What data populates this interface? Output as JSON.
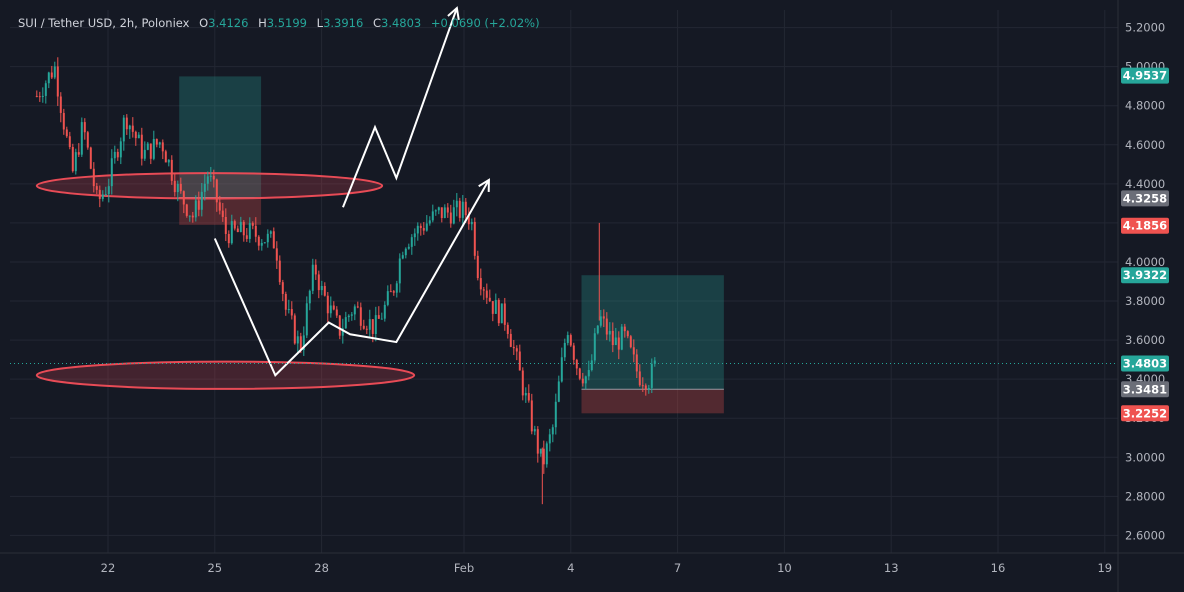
{
  "header": {
    "symbol": "SUI / Tether USD, 2h, Poloniex",
    "open_label": "O",
    "open": "3.4126",
    "high_label": "H",
    "high": "3.5199",
    "low_label": "L",
    "low": "3.3916",
    "close_label": "C",
    "close": "3.4803",
    "change": "+0.0690 (+2.02%)"
  },
  "colors": {
    "background": "#151924",
    "up": "#26a69a",
    "down": "#ef5350",
    "grid": "#232733",
    "axis_text": "#b2b5be",
    "drawing_white": "#ffffff",
    "ellipse": "#e84b56",
    "profit_zone": "rgba(38,166,154,0.28)",
    "loss_zone": "rgba(239,83,80,0.28)"
  },
  "chart_data": {
    "type": "candlestick",
    "y_axis": {
      "range": [
        2.51,
        5.29
      ],
      "ticks": [
        "2.6000",
        "2.8000",
        "3.0000",
        "3.2000",
        "3.4000",
        "3.6000",
        "3.8000",
        "4.0000",
        "4.2000",
        "4.4000",
        "4.6000",
        "4.8000",
        "5.0000",
        "5.2000"
      ]
    },
    "x_axis": {
      "labels": [
        "22",
        "25",
        "28",
        "Feb",
        "4",
        "7",
        "10",
        "13",
        "16",
        "19"
      ]
    },
    "price_path": [
      {
        "x": "20",
        "y": 4.85
      },
      {
        "x": "20.5",
        "y": 5.0
      },
      {
        "x": "21",
        "y": 4.45
      },
      {
        "x": "21.3",
        "y": 4.7
      },
      {
        "x": "21.7",
        "y": 4.3
      },
      {
        "x": "22",
        "y": 4.4
      },
      {
        "x": "22.5",
        "y": 4.75
      },
      {
        "x": "23",
        "y": 4.55
      },
      {
        "x": "23.5",
        "y": 4.62
      },
      {
        "x": "24",
        "y": 4.35
      },
      {
        "x": "24.4",
        "y": 4.23
      },
      {
        "x": "24.8",
        "y": 4.45
      },
      {
        "x": "25",
        "y": 4.35
      },
      {
        "x": "25.3",
        "y": 4.15
      },
      {
        "x": "26",
        "y": 4.15
      },
      {
        "x": "26.7",
        "y": 4.1
      },
      {
        "x": "27",
        "y": 3.75
      },
      {
        "x": "27.4",
        "y": 3.56
      },
      {
        "x": "27.8",
        "y": 3.98
      },
      {
        "x": "28",
        "y": 3.85
      },
      {
        "x": "28.5",
        "y": 3.65
      },
      {
        "x": "28.9",
        "y": 3.77
      },
      {
        "x": "29.5",
        "y": 3.66
      },
      {
        "x": "30",
        "y": 3.85
      },
      {
        "x": "30.3",
        "y": 4.1
      },
      {
        "x": "30.8",
        "y": 4.18
      },
      {
        "x": "31.3",
        "y": 4.25
      },
      {
        "x": "Feb 1",
        "y": 4.26
      },
      {
        "x": "Feb 1.2",
        "y": 4.22
      },
      {
        "x": "Feb 1.4",
        "y": 3.95
      },
      {
        "x": "Feb 1.8",
        "y": 3.78
      },
      {
        "x": "Feb 2.2",
        "y": 3.7
      },
      {
        "x": "Feb 2.6",
        "y": 3.4
      },
      {
        "x": "Feb 3",
        "y": 3.1
      },
      {
        "x": "Feb 3.2",
        "y": 2.96
      },
      {
        "x": "Feb 3.5",
        "y": 3.15
      },
      {
        "x": "Feb 3.9",
        "y": 3.68
      },
      {
        "x": "Feb 4.2",
        "y": 3.45
      },
      {
        "x": "Feb 4.5",
        "y": 3.4
      },
      {
        "x": "Feb 4.8",
        "y": 3.72
      },
      {
        "x": "Feb 5.2",
        "y": 3.58
      },
      {
        "x": "Feb 5.5",
        "y": 3.62
      },
      {
        "x": "Feb 5.9",
        "y": 3.42
      },
      {
        "x": "Feb 6.2",
        "y": 3.4
      },
      {
        "x": "Feb 6.4",
        "y": 3.48
      }
    ],
    "highs_lows": {
      "spike_high": 4.2,
      "crash_low": 2.76
    },
    "position_boxes": [
      {
        "kind": "long",
        "x_start": "24",
        "x_end": "26.3",
        "entry": 4.33,
        "target": 4.95,
        "stop": 4.19
      },
      {
        "kind": "long",
        "x_start": "Feb 4.3",
        "x_end": "Feb 8.3",
        "entry": 3.3481,
        "target": 3.9322,
        "stop": 3.2252
      }
    ],
    "zones": [
      {
        "shape": "ellipse",
        "x_start": "20",
        "x_end": "29.7",
        "y_center": 4.39,
        "y_top": 4.46,
        "y_bottom": 4.33
      },
      {
        "shape": "ellipse",
        "x_start": "20",
        "x_end": "30.6",
        "y_center": 3.42,
        "y_top": 3.49,
        "y_bottom": 3.35
      }
    ],
    "drawings": [
      {
        "type": "polyline",
        "points": [
          {
            "x": "25",
            "y": 4.12
          },
          {
            "x": "26.7",
            "y": 3.42
          },
          {
            "x": "28.2",
            "y": 3.69
          },
          {
            "x": "28.8",
            "y": 3.63
          },
          {
            "x": "30.1",
            "y": 3.59
          },
          {
            "x": "Feb 1.7",
            "y": 4.42
          }
        ],
        "arrow": true
      },
      {
        "type": "polyline",
        "points": [
          {
            "x": "28.6",
            "y": 4.28
          },
          {
            "x": "29.5",
            "y": 4.69
          },
          {
            "x": "30.1",
            "y": 4.43
          },
          {
            "x": "31.8",
            "y": 5.3
          }
        ],
        "arrow": true
      }
    ],
    "price_badges": [
      {
        "value": "4.9537",
        "y": 4.9537,
        "color": "#26a69a"
      },
      {
        "value": "4.3258",
        "y": 4.3258,
        "color": "#6b6e78"
      },
      {
        "value": "4.1856",
        "y": 4.1856,
        "color": "#ef5350"
      },
      {
        "value": "3.9322",
        "y": 3.9322,
        "color": "#26a69a"
      },
      {
        "value": "3.4803",
        "y": 3.4803,
        "color": "#26a69a"
      },
      {
        "value": "3.3481",
        "y": 3.3481,
        "color": "#6b6e78"
      },
      {
        "value": "3.2252",
        "y": 3.2252,
        "color": "#ef5350"
      }
    ],
    "last_price": 3.4803
  }
}
